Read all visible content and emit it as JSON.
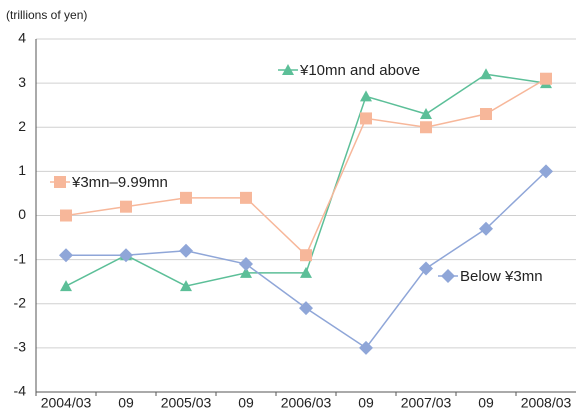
{
  "chart_data": {
    "type": "line",
    "y_label": "(trillions of yen)",
    "categories": [
      "2004/03",
      "09",
      "2005/03",
      "09",
      "2006/03",
      "09",
      "2007/03",
      "09",
      "2008/03"
    ],
    "series": [
      {
        "name": "¥10mn and above",
        "color": "#5cbf98",
        "marker": "triangle",
        "values": [
          -1.6,
          -0.9,
          -1.6,
          -1.3,
          -1.3,
          2.7,
          2.3,
          3.2,
          3.0
        ]
      },
      {
        "name": "¥3mn–9.99mn",
        "color": "#f7b79a",
        "marker": "square",
        "values": [
          0,
          0.2,
          0.4,
          0.4,
          -0.9,
          2.2,
          2.0,
          2.3,
          3.1
        ]
      },
      {
        "name": "Below ¥3mn",
        "color": "#8fa6d8",
        "marker": "diamond",
        "values": [
          -0.9,
          -0.9,
          -0.8,
          -1.1,
          -2.1,
          -3.0,
          -1.2,
          -0.3,
          1.0
        ]
      }
    ],
    "ylim": [
      -4,
      4
    ],
    "yticks": [
      -4,
      -3,
      -2,
      -1,
      0,
      1,
      2,
      3,
      4
    ],
    "grid": true
  }
}
